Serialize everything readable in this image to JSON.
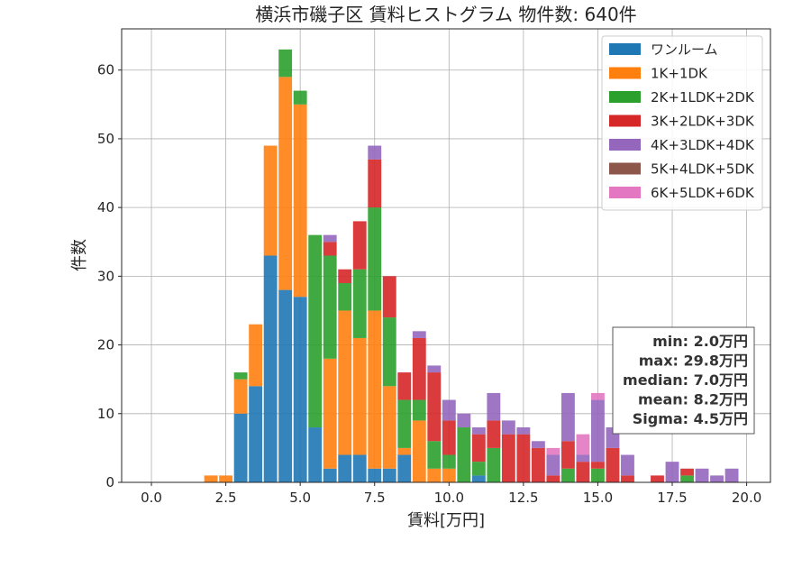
{
  "chart_data": {
    "type": "bar",
    "stacked": true,
    "title": "横浜市磯子区 賃料ヒストグラム 物件数: 640件",
    "xlabel": "賃料[万円]",
    "ylabel": "件数",
    "xlim": [
      -1.0,
      20.8
    ],
    "ylim": [
      0,
      66
    ],
    "xticks": [
      0.0,
      2.5,
      5.0,
      7.5,
      10.0,
      12.5,
      15.0,
      17.5,
      20.0
    ],
    "xtick_labels": [
      "0.0",
      "2.5",
      "5.0",
      "7.5",
      "10.0",
      "12.5",
      "15.0",
      "17.5",
      "20.0"
    ],
    "yticks": [
      0,
      10,
      20,
      30,
      40,
      50,
      60
    ],
    "ytick_labels": [
      "0",
      "10",
      "20",
      "30",
      "40",
      "50",
      "60"
    ],
    "grid": true,
    "legend_position": "top-right",
    "bin_width": 0.5,
    "bin_starts": [
      1.75,
      2.25,
      2.75,
      3.25,
      3.75,
      4.25,
      4.75,
      5.25,
      5.75,
      6.25,
      6.75,
      7.25,
      7.75,
      8.25,
      8.75,
      9.25,
      9.75,
      10.25,
      10.75,
      11.25,
      11.75,
      12.25,
      12.75,
      13.25,
      13.75,
      14.25,
      14.75,
      15.25,
      15.75,
      16.25,
      16.75,
      17.25,
      17.75,
      18.25,
      18.75,
      19.25
    ],
    "series": [
      {
        "name": "ワンルーム",
        "color": "#1f77b4",
        "values": [
          0,
          0,
          10,
          14,
          33,
          28,
          27,
          8,
          2,
          4,
          4,
          2,
          2,
          4,
          0,
          0,
          0,
          0,
          1,
          0,
          0,
          0,
          0,
          0,
          0,
          0,
          0,
          0,
          0,
          0,
          0,
          0,
          0,
          0,
          0,
          0
        ]
      },
      {
        "name": "1K+1DK",
        "color": "#ff7f0e",
        "values": [
          1,
          1,
          5,
          9,
          16,
          31,
          28,
          0,
          16,
          21,
          17,
          23,
          12,
          1,
          9,
          2,
          2,
          0,
          0,
          0,
          0,
          0,
          0,
          0,
          0,
          0,
          0,
          0,
          0,
          0,
          0,
          0,
          0,
          0,
          0,
          0
        ]
      },
      {
        "name": "2K+1LDK+2DK",
        "color": "#2ca02c",
        "values": [
          0,
          0,
          1,
          0,
          0,
          4,
          2,
          28,
          15,
          4,
          10,
          15,
          10,
          7,
          3,
          4,
          2,
          8,
          2,
          5,
          0,
          0,
          0,
          0,
          2,
          0,
          2,
          0,
          0,
          0,
          0,
          0,
          1,
          0,
          0,
          0
        ]
      },
      {
        "name": "3K+2LDK+3DK",
        "color": "#d62728",
        "values": [
          0,
          0,
          0,
          0,
          0,
          0,
          0,
          0,
          2,
          2,
          7,
          7,
          6,
          4,
          9,
          10,
          5,
          0,
          4,
          4,
          7,
          7,
          5,
          1,
          4,
          3,
          1,
          5,
          1,
          0,
          1,
          0,
          1,
          0,
          0,
          0
        ]
      },
      {
        "name": "4K+3LDK+4DK",
        "color": "#9467bd",
        "values": [
          0,
          0,
          0,
          0,
          0,
          0,
          0,
          0,
          1,
          0,
          0,
          2,
          0,
          0,
          1,
          1,
          3,
          2,
          1,
          4,
          2,
          1,
          1,
          3,
          7,
          1,
          9,
          3,
          3,
          0,
          0,
          3,
          0,
          2,
          1,
          2
        ]
      },
      {
        "name": "5K+4LDK+5DK",
        "color": "#8c564b",
        "values": [
          0,
          0,
          0,
          0,
          0,
          0,
          0,
          0,
          0,
          0,
          0,
          0,
          0,
          0,
          0,
          0,
          0,
          0,
          0,
          0,
          0,
          0,
          0,
          0,
          0,
          0,
          0,
          0,
          0,
          0,
          0,
          0,
          0,
          0,
          0,
          0
        ]
      },
      {
        "name": "6K+5LDK+6DK",
        "color": "#e377c2",
        "values": [
          0,
          0,
          0,
          0,
          0,
          0,
          0,
          0,
          0,
          0,
          0,
          0,
          0,
          0,
          0,
          0,
          0,
          0,
          0,
          0,
          0,
          0,
          0,
          1,
          0,
          3,
          1,
          0,
          0,
          0,
          0,
          0,
          0,
          0,
          0,
          0
        ]
      }
    ],
    "stats_box": [
      "min: 2.0万円",
      "max: 29.8万円",
      "median: 7.0万円",
      "mean: 8.2万円",
      "Sigma: 4.5万円"
    ]
  }
}
